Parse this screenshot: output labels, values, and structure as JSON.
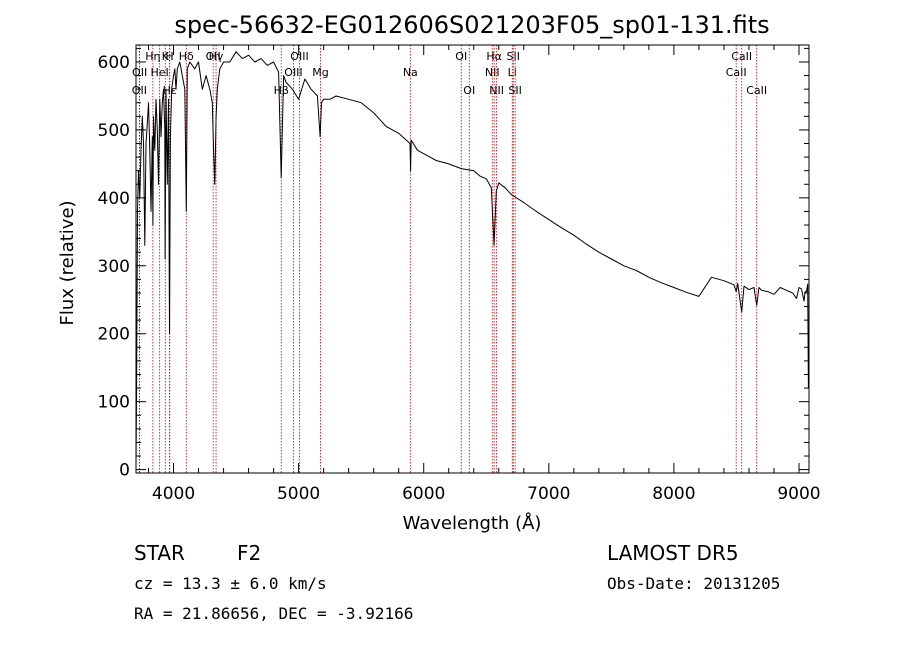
{
  "chart_data": {
    "type": "line",
    "title": "spec-56632-EG012606S021203F05_sp01-131.fits",
    "xlabel": "Wavelength (Å)",
    "ylabel": "Flux (relative)",
    "xlim": [
      3700,
      9080
    ],
    "ylim": [
      -5,
      625
    ],
    "x_ticks": [
      4000,
      5000,
      6000,
      7000,
      8000,
      9000
    ],
    "y_ticks": [
      0,
      100,
      200,
      300,
      400,
      500,
      600
    ],
    "grid": false,
    "series": [
      {
        "x": [
          3700,
          3705,
          3712,
          3720,
          3730,
          3740,
          3750,
          3760,
          3770,
          3780,
          3790,
          3800,
          3810,
          3820,
          3830,
          3835,
          3840,
          3850,
          3860,
          3870,
          3880,
          3890,
          3900,
          3910,
          3920,
          3930,
          3933,
          3940,
          3950,
          3960,
          3968,
          3975,
          3985,
          4000,
          4010,
          4020,
          4030,
          4050,
          4070,
          4090,
          4102,
          4110,
          4130,
          4150,
          4170,
          4200,
          4230,
          4260,
          4290,
          4310,
          4320,
          4330,
          4340,
          4350,
          4370,
          4400,
          4450,
          4500,
          4550,
          4600,
          4650,
          4700,
          4750,
          4800,
          4840,
          4861,
          4880,
          4900,
          4950,
          5000,
          5050,
          5100,
          5150,
          5172,
          5183,
          5200,
          5250,
          5300,
          5400,
          5500,
          5600,
          5700,
          5800,
          5890,
          5895,
          5900,
          5950,
          6000,
          6100,
          6200,
          6300,
          6400,
          6450,
          6500,
          6540,
          6563,
          6580,
          6600,
          6650,
          6700,
          6800,
          6900,
          7000,
          7100,
          7200,
          7300,
          7400,
          7500,
          7600,
          7700,
          7800,
          7900,
          8000,
          8100,
          8200,
          8300,
          8400,
          8480,
          8498,
          8510,
          8542,
          8560,
          8600,
          8640,
          8662,
          8680,
          8700,
          8750,
          8800,
          8850,
          8900,
          8950,
          8980,
          9000,
          9020,
          9040,
          9050,
          9060,
          9070,
          9075
        ],
        "y": [
          5,
          120,
          380,
          440,
          400,
          470,
          520,
          480,
          330,
          480,
          510,
          540,
          470,
          380,
          490,
          360,
          520,
          470,
          545,
          500,
          420,
          545,
          490,
          540,
          560,
          500,
          310,
          560,
          420,
          545,
          200,
          490,
          560,
          580,
          590,
          560,
          590,
          600,
          580,
          560,
          380,
          590,
          600,
          595,
          590,
          600,
          560,
          580,
          560,
          540,
          470,
          420,
          520,
          560,
          590,
          600,
          600,
          615,
          605,
          610,
          600,
          605,
          595,
          600,
          585,
          430,
          580,
          570,
          560,
          545,
          575,
          560,
          550,
          490,
          540,
          545,
          545,
          550,
          545,
          540,
          525,
          505,
          495,
          480,
          440,
          485,
          470,
          465,
          455,
          450,
          443,
          440,
          432,
          428,
          415,
          330,
          410,
          422,
          415,
          405,
          393,
          380,
          368,
          356,
          345,
          332,
          320,
          310,
          300,
          293,
          283,
          275,
          268,
          261,
          255,
          283,
          278,
          272,
          262,
          274,
          232,
          270,
          265,
          268,
          242,
          268,
          264,
          262,
          258,
          268,
          264,
          260,
          252,
          268,
          266,
          248,
          262,
          262,
          273,
          120
        ],
        "color": "#000000"
      }
    ],
    "line_marks": [
      {
        "label": "OII",
        "wavelength": 3727,
        "row": 3
      },
      {
        "label": "OII",
        "wavelength": 3729,
        "row": 2
      },
      {
        "label": "Hη",
        "wavelength": 3835,
        "row": 1
      },
      {
        "label": "HeI",
        "wavelength": 3889,
        "row": 2
      },
      {
        "label": "K",
        "wavelength": 3934,
        "row": 1
      },
      {
        "label": "H",
        "wavelength": 3968,
        "row": 1
      },
      {
        "label": "Hε",
        "wavelength": 3970,
        "row": 3
      },
      {
        "label": "Hδ",
        "wavelength": 4102,
        "row": 1
      },
      {
        "label": "OII",
        "wavelength": 4317,
        "row": 1
      },
      {
        "label": "Hγ",
        "wavelength": 4340,
        "row": 1
      },
      {
        "label": "Hβ",
        "wavelength": 4861,
        "row": 3
      },
      {
        "label": "OIII",
        "wavelength": 4959,
        "row": 2
      },
      {
        "label": "OIII",
        "wavelength": 5007,
        "row": 1
      },
      {
        "label": "Mg",
        "wavelength": 5175,
        "row": 2
      },
      {
        "label": "Na",
        "wavelength": 5893,
        "row": 2
      },
      {
        "label": "OI",
        "wavelength": 6300,
        "row": 1
      },
      {
        "label": "OI",
        "wavelength": 6364,
        "row": 3
      },
      {
        "label": "NII",
        "wavelength": 6548,
        "row": 2
      },
      {
        "label": "Hα",
        "wavelength": 6563,
        "row": 1
      },
      {
        "label": "NII",
        "wavelength": 6583,
        "row": 3
      },
      {
        "label": "Li",
        "wavelength": 6708,
        "row": 2
      },
      {
        "label": "SII",
        "wavelength": 6716,
        "row": 1
      },
      {
        "label": "SII",
        "wavelength": 6731,
        "row": 3
      },
      {
        "label": "CaII",
        "wavelength": 8498,
        "row": 2
      },
      {
        "label": "CaII",
        "wavelength": 8542,
        "row": 1
      },
      {
        "label": "CaII",
        "wavelength": 8662,
        "row": 3
      }
    ],
    "line_mark_color": "#cc0000"
  },
  "info": {
    "object": "STAR",
    "subclass": "F2",
    "survey": "LAMOST DR5",
    "cz": "cz = 13.3 ± 6.0 km/s",
    "obs_date": "Obs-Date: 20131205",
    "coords": "RA =  21.86656, DEC =  -3.92166"
  }
}
